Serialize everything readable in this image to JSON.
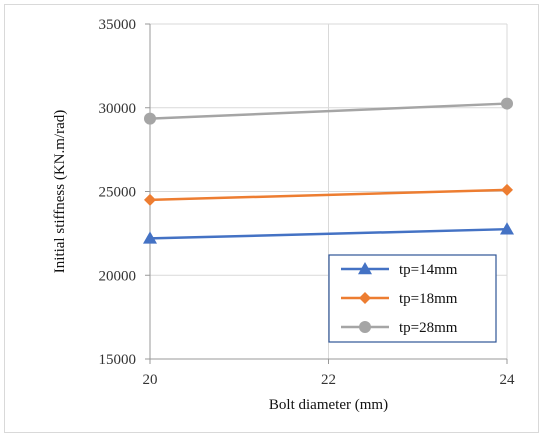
{
  "chart_data": {
    "type": "line",
    "title": "",
    "xlabel": "Bolt diameter (mm)",
    "ylabel": "Initial stiffness (KN.m/rad)",
    "x": [
      20,
      24
    ],
    "xlim": [
      20,
      24
    ],
    "xticks": [
      20,
      22,
      24
    ],
    "ylim": [
      15000,
      35000
    ],
    "yticks": [
      15000,
      20000,
      25000,
      30000,
      35000
    ],
    "grid": true,
    "legend_position": "bottom-right",
    "series": [
      {
        "name": "tp=14mm",
        "values": [
          22200,
          22750
        ],
        "color": "#4472C4",
        "marker": "triangle"
      },
      {
        "name": "tp=18mm",
        "values": [
          24500,
          25100
        ],
        "color": "#ED7D31",
        "marker": "diamond"
      },
      {
        "name": "tp=28mm",
        "values": [
          29350,
          30250
        ],
        "color": "#A5A5A5",
        "marker": "circle"
      }
    ]
  }
}
